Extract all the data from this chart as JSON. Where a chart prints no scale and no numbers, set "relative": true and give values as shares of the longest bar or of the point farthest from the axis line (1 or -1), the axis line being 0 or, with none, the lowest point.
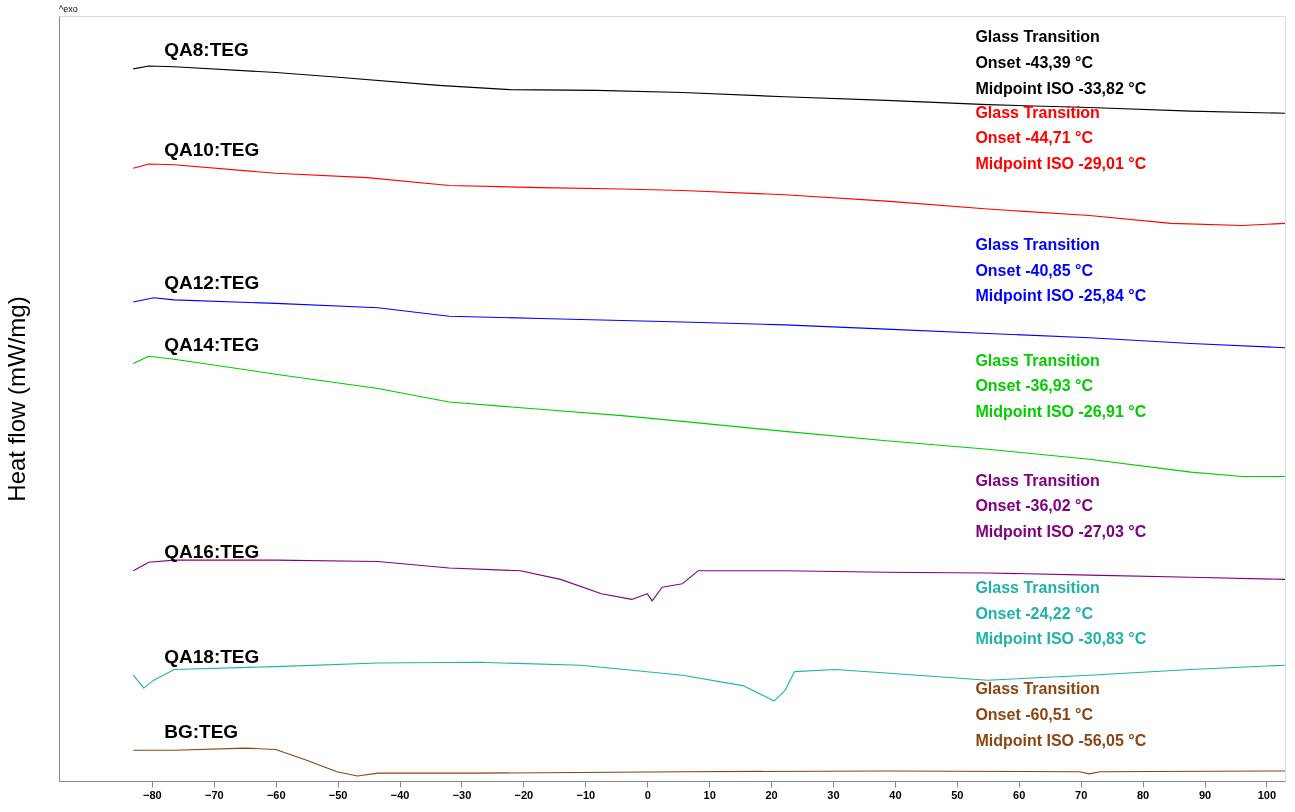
{
  "chart_data": {
    "type": "line",
    "relative": true,
    "ylabel": "Heat flow (mW/mg)",
    "xlim": [
      -95,
      103
    ],
    "xticks": [
      -80,
      -70,
      -60,
      -50,
      -40,
      -30,
      -20,
      -10,
      0,
      10,
      20,
      30,
      40,
      50,
      60,
      70,
      80,
      90,
      100
    ],
    "grid": false,
    "legend": false,
    "marker": "none",
    "line_style": "solid",
    "series": [
      {
        "name": "QA8:TEG",
        "color": "#000000",
        "x": [
          -83.0,
          -80.5,
          -76.4,
          -60.0,
          -50.9,
          -33.7,
          -22.2,
          -8.2,
          5.7,
          22.2,
          38.6,
          55.0,
          71.4,
          87.8,
          103.0
        ],
        "values": [
          0.996,
          1.0,
          0.999,
          0.991,
          0.985,
          0.973,
          0.967,
          0.966,
          0.963,
          0.957,
          0.952,
          0.946,
          0.942,
          0.937,
          0.934
        ]
      },
      {
        "name": "QA10:TEG",
        "color": "#ff0000",
        "x": [
          -83.0,
          -80.5,
          -76.4,
          -60.0,
          -45.2,
          -32.0,
          -17.3,
          -4.1,
          5.7,
          22.2,
          38.6,
          55.0,
          71.4,
          84.6,
          96.1,
          103.0
        ],
        "values": [
          0.857,
          0.863,
          0.862,
          0.85,
          0.844,
          0.833,
          0.83,
          0.828,
          0.826,
          0.82,
          0.811,
          0.8,
          0.791,
          0.78,
          0.777,
          0.78
        ]
      },
      {
        "name": "QA12:TEG",
        "color": "#0000ff",
        "x": [
          -83.0,
          -79.7,
          -76.4,
          -60.0,
          -43.5,
          -32.0,
          -17.3,
          -4.1,
          5.7,
          22.2,
          38.6,
          55.0,
          71.4,
          87.8,
          103.0
        ],
        "values": [
          0.67,
          0.676,
          0.673,
          0.668,
          0.662,
          0.65,
          0.647,
          0.644,
          0.642,
          0.638,
          0.632,
          0.626,
          0.62,
          0.612,
          0.606
        ]
      },
      {
        "name": "QA14:TEG",
        "color": "#00cc00",
        "x": [
          -83.0,
          -80.5,
          -76.4,
          -60.0,
          -43.5,
          -32.0,
          -17.3,
          -4.1,
          5.7,
          22.2,
          38.6,
          55.0,
          71.4,
          87.8,
          96.1,
          103.0
        ],
        "values": [
          0.584,
          0.594,
          0.59,
          0.569,
          0.549,
          0.53,
          0.52,
          0.511,
          0.503,
          0.489,
          0.476,
          0.464,
          0.45,
          0.432,
          0.426,
          0.426
        ]
      },
      {
        "name": "QA16:TEG",
        "color": "#800080",
        "x": [
          -83.0,
          -80.5,
          -76.4,
          -60.0,
          -43.5,
          -32.0,
          -20.5,
          -14.0,
          -7.4,
          -2.5,
          0.0,
          0.8,
          2.4,
          5.7,
          8.2,
          22.2,
          38.6,
          55.0,
          71.4,
          87.8,
          103.0
        ],
        "values": [
          0.294,
          0.306,
          0.309,
          0.309,
          0.307,
          0.298,
          0.294,
          0.282,
          0.262,
          0.254,
          0.262,
          0.252,
          0.271,
          0.276,
          0.294,
          0.294,
          0.292,
          0.291,
          0.288,
          0.285,
          0.282
        ]
      },
      {
        "name": "QA18:TEG",
        "color": "#20b2aa",
        "x": [
          -83.0,
          -81.3,
          -79.7,
          -76.4,
          -60.0,
          -43.5,
          -27.1,
          -10.7,
          5.7,
          15.6,
          20.5,
          22.2,
          23.8,
          30.4,
          38.6,
          55.0,
          71.4,
          87.8,
          103.0
        ],
        "values": [
          0.148,
          0.13,
          0.141,
          0.156,
          0.16,
          0.165,
          0.166,
          0.162,
          0.148,
          0.133,
          0.112,
          0.126,
          0.153,
          0.156,
          0.151,
          0.141,
          0.148,
          0.156,
          0.162
        ]
      },
      {
        "name": "BG:TEG",
        "color": "#8b4513",
        "x": [
          -83.0,
          -76.4,
          -64.9,
          -60.0,
          -55.0,
          -50.1,
          -46.8,
          -43.5,
          -27.1,
          5.7,
          38.6,
          69.8,
          71.4,
          73.1,
          103.0
        ],
        "values": [
          0.043,
          0.043,
          0.046,
          0.044,
          0.029,
          0.013,
          0.007,
          0.011,
          0.011,
          0.013,
          0.014,
          0.013,
          0.01,
          0.013,
          0.014
        ]
      }
    ],
    "annotations": [
      "^exo",
      "Glass Transition",
      "Onset -43,39 °C",
      "Midpoint ISO -33,82 °C",
      "Glass Transition",
      "Onset -44,71 °C",
      "Midpoint ISO -29,01 °C",
      "Glass Transition",
      "Onset -40,85 °C",
      "Midpoint ISO -25,84 °C",
      "Glass Transition",
      "Onset -36,93 °C",
      "Midpoint ISO -26,91 °C",
      "Glass Transition",
      "Onset -36,02 °C",
      "Midpoint ISO -27,03 °C",
      "Glass Transition",
      "Onset -24,22 °C",
      "Midpoint ISO -30,83 °C",
      "Glass Transition",
      "Onset -60,51 °C",
      "Midpoint ISO -56,05 °C"
    ]
  }
}
